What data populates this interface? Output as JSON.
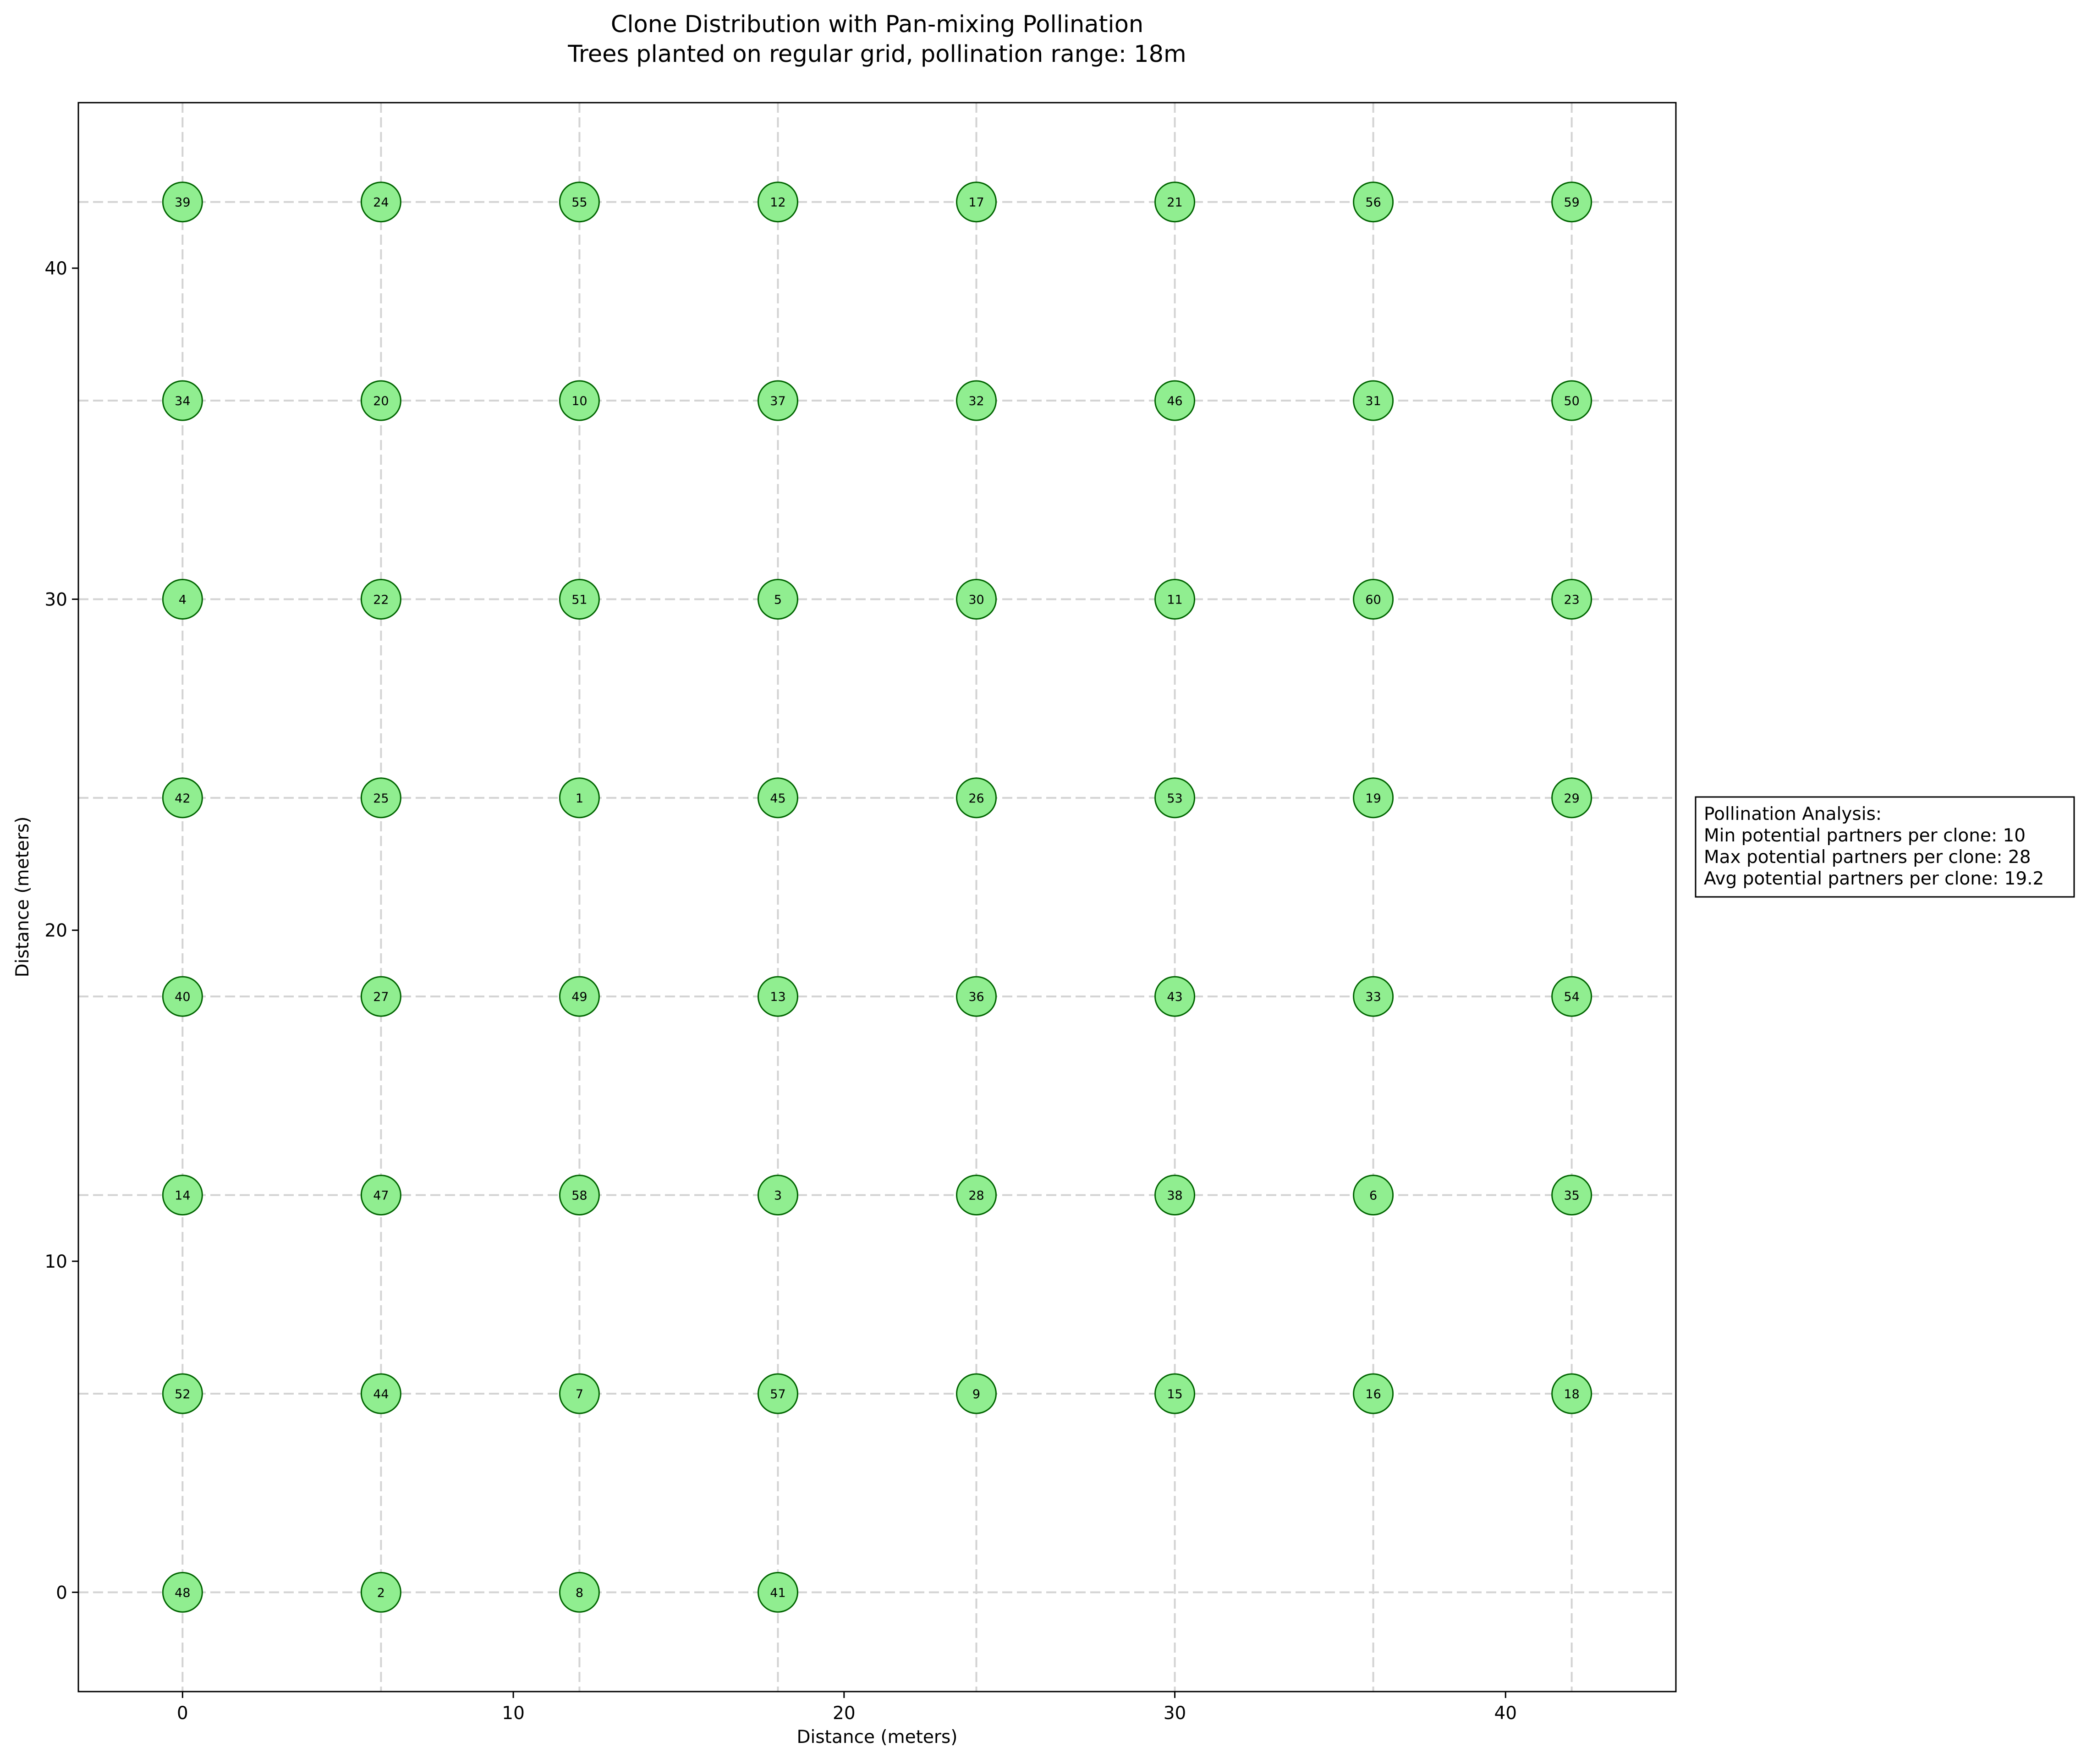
{
  "chart_data": {
    "type": "scatter",
    "title_line1": "Clone Distribution with Pan-mixing Pollination",
    "title_line2": "Trees planted on regular grid, pollination range: 18m",
    "xlabel": "Distance (meters)",
    "ylabel": "Distance (meters)",
    "xlim": [
      -3.15,
      45.15
    ],
    "ylim": [
      -3.0,
      45.0
    ],
    "xticks": [
      0,
      10,
      20,
      30,
      40
    ],
    "yticks": [
      0,
      10,
      20,
      30,
      40
    ],
    "grid": {
      "x": [
        0,
        6,
        12,
        18,
        24,
        30,
        36,
        42
      ],
      "y": [
        0,
        6,
        12,
        18,
        24,
        30,
        36,
        42
      ],
      "style": "dashed",
      "color": "#d3d3d3"
    },
    "marker": {
      "fill": "#90ee90",
      "edge": "#006400"
    },
    "points": [
      {
        "x": 0,
        "y": 0,
        "label": "48"
      },
      {
        "x": 6,
        "y": 0,
        "label": "2"
      },
      {
        "x": 12,
        "y": 0,
        "label": "8"
      },
      {
        "x": 18,
        "y": 0,
        "label": "41"
      },
      {
        "x": 0,
        "y": 6,
        "label": "52"
      },
      {
        "x": 6,
        "y": 6,
        "label": "44"
      },
      {
        "x": 12,
        "y": 6,
        "label": "7"
      },
      {
        "x": 18,
        "y": 6,
        "label": "57"
      },
      {
        "x": 24,
        "y": 6,
        "label": "9"
      },
      {
        "x": 30,
        "y": 6,
        "label": "15"
      },
      {
        "x": 36,
        "y": 6,
        "label": "16"
      },
      {
        "x": 42,
        "y": 6,
        "label": "18"
      },
      {
        "x": 0,
        "y": 12,
        "label": "14"
      },
      {
        "x": 6,
        "y": 12,
        "label": "47"
      },
      {
        "x": 12,
        "y": 12,
        "label": "58"
      },
      {
        "x": 18,
        "y": 12,
        "label": "3"
      },
      {
        "x": 24,
        "y": 12,
        "label": "28"
      },
      {
        "x": 30,
        "y": 12,
        "label": "38"
      },
      {
        "x": 36,
        "y": 12,
        "label": "6"
      },
      {
        "x": 42,
        "y": 12,
        "label": "35"
      },
      {
        "x": 0,
        "y": 18,
        "label": "40"
      },
      {
        "x": 6,
        "y": 18,
        "label": "27"
      },
      {
        "x": 12,
        "y": 18,
        "label": "49"
      },
      {
        "x": 18,
        "y": 18,
        "label": "13"
      },
      {
        "x": 24,
        "y": 18,
        "label": "36"
      },
      {
        "x": 30,
        "y": 18,
        "label": "43"
      },
      {
        "x": 36,
        "y": 18,
        "label": "33"
      },
      {
        "x": 42,
        "y": 18,
        "label": "54"
      },
      {
        "x": 0,
        "y": 24,
        "label": "42"
      },
      {
        "x": 6,
        "y": 24,
        "label": "25"
      },
      {
        "x": 12,
        "y": 24,
        "label": "1"
      },
      {
        "x": 18,
        "y": 24,
        "label": "45"
      },
      {
        "x": 24,
        "y": 24,
        "label": "26"
      },
      {
        "x": 30,
        "y": 24,
        "label": "53"
      },
      {
        "x": 36,
        "y": 24,
        "label": "19"
      },
      {
        "x": 42,
        "y": 24,
        "label": "29"
      },
      {
        "x": 0,
        "y": 30,
        "label": "4"
      },
      {
        "x": 6,
        "y": 30,
        "label": "22"
      },
      {
        "x": 12,
        "y": 30,
        "label": "51"
      },
      {
        "x": 18,
        "y": 30,
        "label": "5"
      },
      {
        "x": 24,
        "y": 30,
        "label": "30"
      },
      {
        "x": 30,
        "y": 30,
        "label": "11"
      },
      {
        "x": 36,
        "y": 30,
        "label": "60"
      },
      {
        "x": 42,
        "y": 30,
        "label": "23"
      },
      {
        "x": 0,
        "y": 36,
        "label": "34"
      },
      {
        "x": 6,
        "y": 36,
        "label": "20"
      },
      {
        "x": 12,
        "y": 36,
        "label": "10"
      },
      {
        "x": 18,
        "y": 36,
        "label": "37"
      },
      {
        "x": 24,
        "y": 36,
        "label": "32"
      },
      {
        "x": 30,
        "y": 36,
        "label": "46"
      },
      {
        "x": 36,
        "y": 36,
        "label": "31"
      },
      {
        "x": 42,
        "y": 36,
        "label": "50"
      },
      {
        "x": 0,
        "y": 42,
        "label": "39"
      },
      {
        "x": 6,
        "y": 42,
        "label": "24"
      },
      {
        "x": 12,
        "y": 42,
        "label": "55"
      },
      {
        "x": 18,
        "y": 42,
        "label": "12"
      },
      {
        "x": 24,
        "y": 42,
        "label": "17"
      },
      {
        "x": 30,
        "y": 42,
        "label": "21"
      },
      {
        "x": 36,
        "y": 42,
        "label": "56"
      },
      {
        "x": 42,
        "y": 42,
        "label": "59"
      }
    ],
    "annotation": {
      "lines": [
        "Pollination Analysis:",
        "Min potential partners per clone: 10",
        "Max potential partners per clone: 28",
        "Avg potential partners per clone: 19.2"
      ]
    }
  }
}
